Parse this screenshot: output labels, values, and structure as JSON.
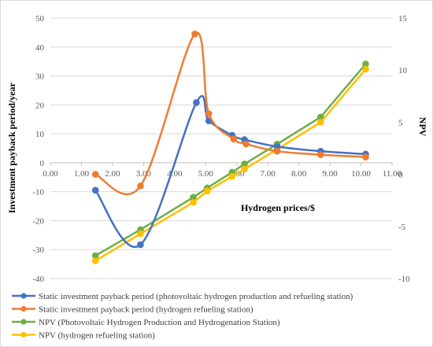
{
  "chart_data": {
    "type": "line",
    "xlabel": "Hydrogen prices/$",
    "ylabel_left": "Investment payback period/year",
    "ylabel_right": "NPV",
    "xlim": [
      0,
      11
    ],
    "ylim_left": [
      -40,
      50
    ],
    "ylim_right": [
      -10,
      15
    ],
    "x_ticks": [
      "0.00",
      "1.00",
      "2.00",
      "3.00",
      "4.00",
      "5.00",
      "6.00",
      "7.00",
      "8.00",
      "9.00",
      "10.00",
      "11.00"
    ],
    "y_left_ticks": [
      "50",
      "40",
      "30",
      "20",
      "10",
      "0",
      "-10",
      "-20",
      "-30",
      "-40"
    ],
    "y_right_ticks": [
      "15",
      "10",
      "5",
      "0",
      "-5",
      "-10"
    ],
    "grid": "horizontal",
    "legend_position": "bottom",
    "series": [
      {
        "name": "Static investment payback period (photovoltaic hydrogen production and refueling station)",
        "axis": "left",
        "color": "#4472c4",
        "smooth": true,
        "x": [
          1.45,
          2.9,
          4.7,
          5.1,
          5.85,
          6.25,
          7.3,
          8.7,
          10.15
        ],
        "y": [
          -9.5,
          -28.3,
          20.8,
          14.5,
          9.5,
          8.0,
          5.6,
          4.0,
          3.0
        ]
      },
      {
        "name": "Static investment payback period (hydrogen refueling station)",
        "axis": "left",
        "color": "#ed7d31",
        "smooth": true,
        "x": [
          1.45,
          2.9,
          4.65,
          5.1,
          5.9,
          6.3,
          7.3,
          8.7,
          10.15
        ],
        "y": [
          -4.0,
          -8.0,
          44.5,
          17.0,
          8.2,
          6.5,
          4.0,
          2.8,
          2.0
        ]
      },
      {
        "name": "NPV (Photovoltaic Hydrogen Production and Hydrogenation Station)",
        "axis": "right",
        "color": "#70ad47",
        "smooth": false,
        "x": [
          1.45,
          2.9,
          4.6,
          5.05,
          5.85,
          6.25,
          7.3,
          8.7,
          10.15
        ],
        "y": [
          -7.8,
          -5.3,
          -2.2,
          -1.3,
          0.2,
          1.0,
          2.9,
          5.5,
          10.6
        ]
      },
      {
        "name": "NPV (hydrogen refueling station)",
        "axis": "right",
        "color": "#ffc000",
        "smooth": false,
        "x": [
          1.45,
          2.9,
          4.6,
          5.05,
          5.85,
          6.25,
          7.3,
          8.7,
          10.15
        ],
        "y": [
          -8.3,
          -5.7,
          -2.7,
          -1.6,
          -0.2,
          0.5,
          2.4,
          5.0,
          10.1
        ]
      }
    ]
  }
}
